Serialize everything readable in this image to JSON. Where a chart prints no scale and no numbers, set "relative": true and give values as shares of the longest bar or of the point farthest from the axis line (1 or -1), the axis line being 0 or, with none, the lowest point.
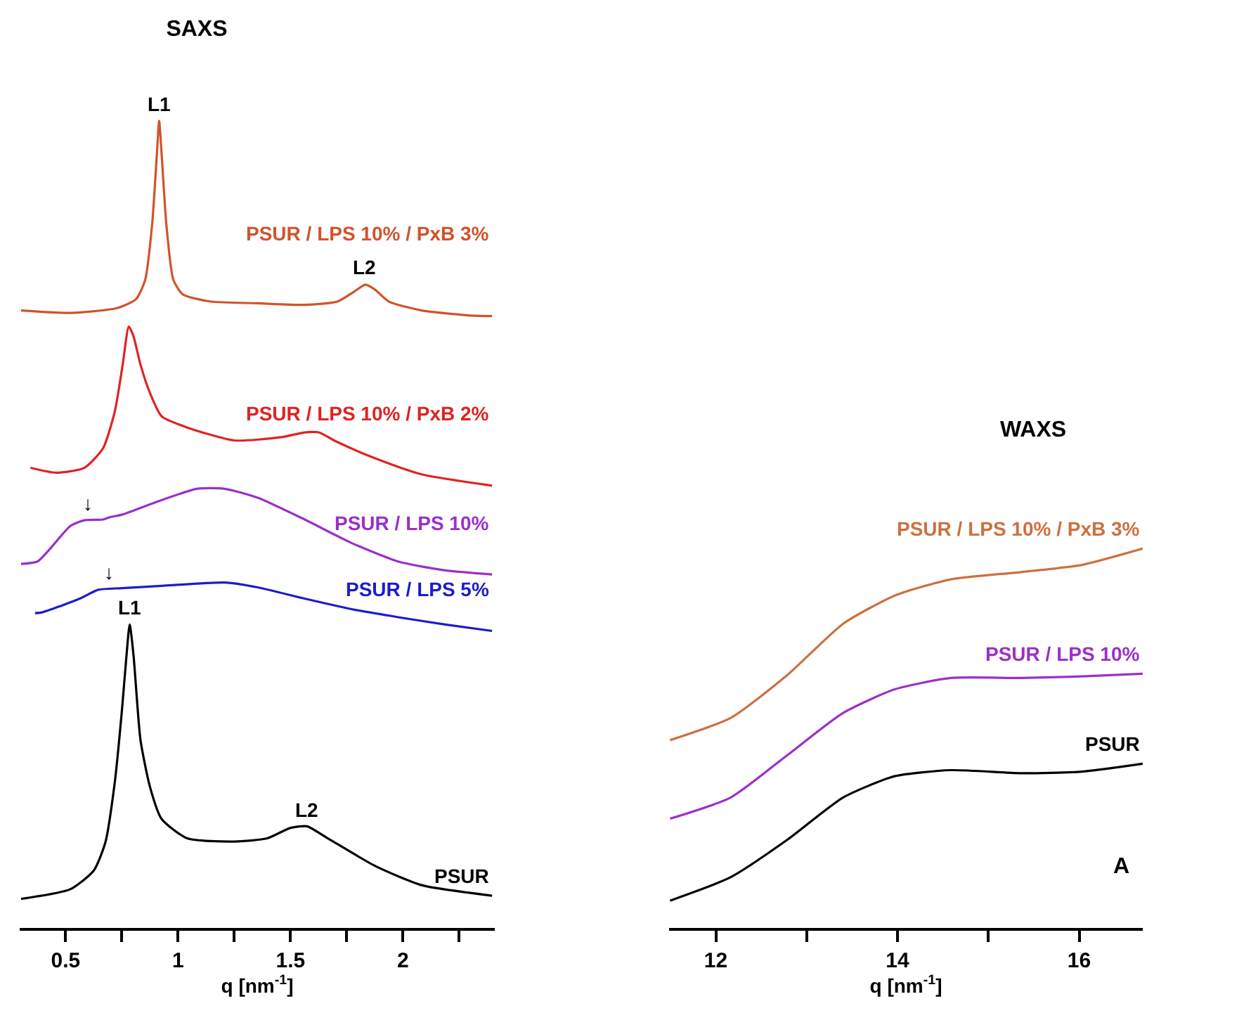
{
  "chart_data": [
    {
      "type": "line",
      "title": "SAXS",
      "xlabel": "q [nm$^{-1}$]",
      "relative": true,
      "xlim": [
        0.296,
        2.408
      ],
      "xticks": [
        0.5,
        {
          "value": 0.75,
          "label": null
        },
        1,
        {
          "value": 1.25,
          "label": null
        },
        1.5,
        {
          "value": 1.75,
          "label": null
        },
        2,
        {
          "value": 2.25,
          "label": null
        }
      ],
      "series": [
        {
          "name": "PSUR / LPS 10% / PxB 3%",
          "color": "#d0542a",
          "x": [
            0.302,
            0.521,
            0.729,
            0.813,
            0.854,
            0.885,
            0.906,
            0.916,
            0.927,
            0.948,
            0.979,
            1.021,
            1.146,
            1.354,
            1.563,
            1.708,
            1.781,
            1.833,
            1.875,
            1.938,
            2.083,
            2.291,
            2.396
          ],
          "values": [
            0.765,
            0.762,
            0.768,
            0.779,
            0.803,
            0.872,
            0.959,
            1.0,
            0.959,
            0.872,
            0.803,
            0.785,
            0.776,
            0.774,
            0.772,
            0.776,
            0.788,
            0.797,
            0.791,
            0.776,
            0.765,
            0.759,
            0.758
          ]
        },
        {
          "name": "PSUR / LPS 10% / PxB 2%",
          "color": "#e02222",
          "x": [
            0.344,
            0.458,
            0.583,
            0.666,
            0.719,
            0.754,
            0.781,
            0.802,
            0.833,
            0.875,
            0.927,
            1.041,
            1.25,
            1.458,
            1.563,
            1.625,
            1.708,
            1.875,
            2.083,
            2.396
          ],
          "values": [
            0.57,
            0.564,
            0.57,
            0.594,
            0.64,
            0.698,
            0.745,
            0.733,
            0.698,
            0.663,
            0.634,
            0.62,
            0.604,
            0.608,
            0.614,
            0.614,
            0.602,
            0.582,
            0.562,
            0.548
          ]
        },
        {
          "name": "PSUR / LPS 10%",
          "color": "#9b30c8",
          "x": [
            0.302,
            0.375,
            0.438,
            0.521,
            0.583,
            0.666,
            0.698,
            0.75,
            0.896,
            1.083,
            1.208,
            1.354,
            1.563,
            1.771,
            1.979,
            2.188,
            2.396
          ],
          "values": [
            0.451,
            0.454,
            0.472,
            0.498,
            0.505,
            0.506,
            0.509,
            0.512,
            0.527,
            0.544,
            0.544,
            0.533,
            0.506,
            0.477,
            0.454,
            0.443,
            0.438
          ]
        },
        {
          "name": "PSUR / LPS 5%",
          "color": "#1c1ccc",
          "x": [
            0.364,
            0.396,
            0.479,
            0.563,
            0.646,
            0.75,
            0.938,
            1.208,
            1.354,
            1.563,
            1.771,
            1.979,
            2.188,
            2.396
          ],
          "values": [
            0.39,
            0.391,
            0.399,
            0.408,
            0.419,
            0.421,
            0.424,
            0.428,
            0.422,
            0.408,
            0.395,
            0.385,
            0.376,
            0.368
          ]
        },
        {
          "name": "PSUR",
          "color": "#000000",
          "x": [
            0.302,
            0.521,
            0.625,
            0.677,
            0.719,
            0.75,
            0.771,
            0.785,
            0.802,
            0.833,
            0.875,
            0.927,
            1.041,
            1.25,
            1.396,
            1.5,
            1.573,
            1.666,
            1.875,
            2.083,
            2.396
          ],
          "values": [
            0.036,
            0.048,
            0.071,
            0.106,
            0.181,
            0.268,
            0.338,
            0.376,
            0.338,
            0.233,
            0.175,
            0.135,
            0.111,
            0.107,
            0.111,
            0.124,
            0.126,
            0.111,
            0.077,
            0.053,
            0.04
          ]
        }
      ],
      "annotations": [
        {
          "text": "L1",
          "x": 0.916,
          "y": 1.0
        },
        {
          "text": "L2",
          "x": 1.833,
          "y": 0.797
        },
        {
          "text": "↓",
          "x": 0.6,
          "y": 0.505
        },
        {
          "text": "↓",
          "x": 0.69,
          "y": 0.42
        },
        {
          "text": "L1",
          "x": 0.785,
          "y": 0.376
        },
        {
          "text": "L2",
          "x": 1.573,
          "y": 0.126
        }
      ]
    },
    {
      "type": "line",
      "title": "WAXS",
      "xlabel": "q [nm$^{-1}$]",
      "relative": true,
      "xlim": [
        11.485,
        16.7
      ],
      "xticks": [
        12,
        {
          "value": 13,
          "label": null
        },
        14,
        {
          "value": 15,
          "label": null
        },
        16
      ],
      "series": [
        {
          "name": "PSUR / LPS 10% / PxB 3%",
          "color": "#cc7040",
          "x": [
            11.496,
            12.165,
            12.784,
            13.402,
            13.969,
            14.587,
            15.36,
            16.029,
            16.699
          ],
          "values": [
            0.495,
            0.554,
            0.666,
            0.802,
            0.876,
            0.919,
            0.938,
            0.957,
            1.0
          ]
        },
        {
          "name": "PSUR / LPS 10%",
          "color": "#9b30c8",
          "x": [
            11.496,
            12.165,
            12.784,
            13.402,
            13.969,
            14.587,
            15.36,
            16.029,
            16.699
          ],
          "values": [
            0.288,
            0.344,
            0.455,
            0.567,
            0.629,
            0.659,
            0.659,
            0.663,
            0.67
          ]
        },
        {
          "name": "PSUR",
          "color": "#000000",
          "x": [
            11.496,
            12.165,
            12.784,
            13.402,
            13.969,
            14.587,
            15.36,
            16.029,
            16.699
          ],
          "values": [
            0.072,
            0.134,
            0.232,
            0.344,
            0.4,
            0.416,
            0.408,
            0.412,
            0.433
          ]
        }
      ],
      "annotations": [
        "A"
      ]
    }
  ]
}
